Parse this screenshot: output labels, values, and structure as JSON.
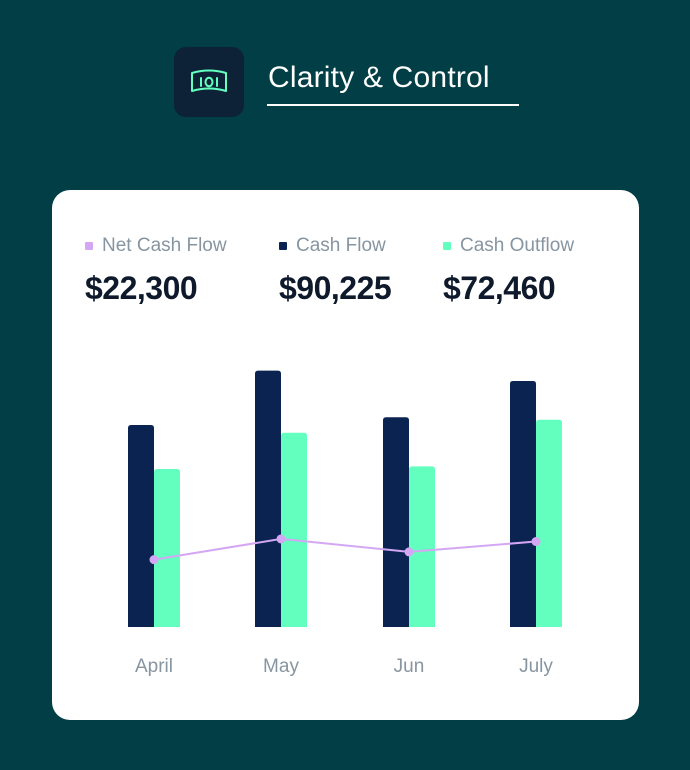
{
  "header": {
    "title": "Clarity & Control",
    "logo_icon": "banknote-icon"
  },
  "metrics": [
    {
      "label": "Net Cash Flow",
      "value": "$22,300",
      "color": "#d4a7f5"
    },
    {
      "label": "Cash Flow",
      "value": "$90,225",
      "color": "#0a2351"
    },
    {
      "label": "Cash Outflow",
      "value": "$72,460",
      "color": "#62ffbe"
    }
  ],
  "colors": {
    "background": "#023e45",
    "card": "#ffffff",
    "cash_flow": "#0a2351",
    "cash_outflow": "#62ffbe",
    "net_cash_flow": "#d4a7f5"
  },
  "chart_data": {
    "type": "bar",
    "categories": [
      "April",
      "May",
      "Jun",
      "July"
    ],
    "ylim": [
      0,
      100
    ],
    "series": [
      {
        "name": "Cash Flow",
        "type": "bar",
        "color": "#0a2351",
        "values": [
          78,
          99,
          81,
          95
        ]
      },
      {
        "name": "Cash Outflow",
        "type": "bar",
        "color": "#62ffbe",
        "values": [
          61,
          75,
          62,
          80
        ]
      },
      {
        "name": "Net Cash Flow",
        "type": "line",
        "color": "#d4a7f5",
        "values": [
          26,
          34,
          29,
          33
        ]
      }
    ],
    "grid": false,
    "legend": "top"
  }
}
